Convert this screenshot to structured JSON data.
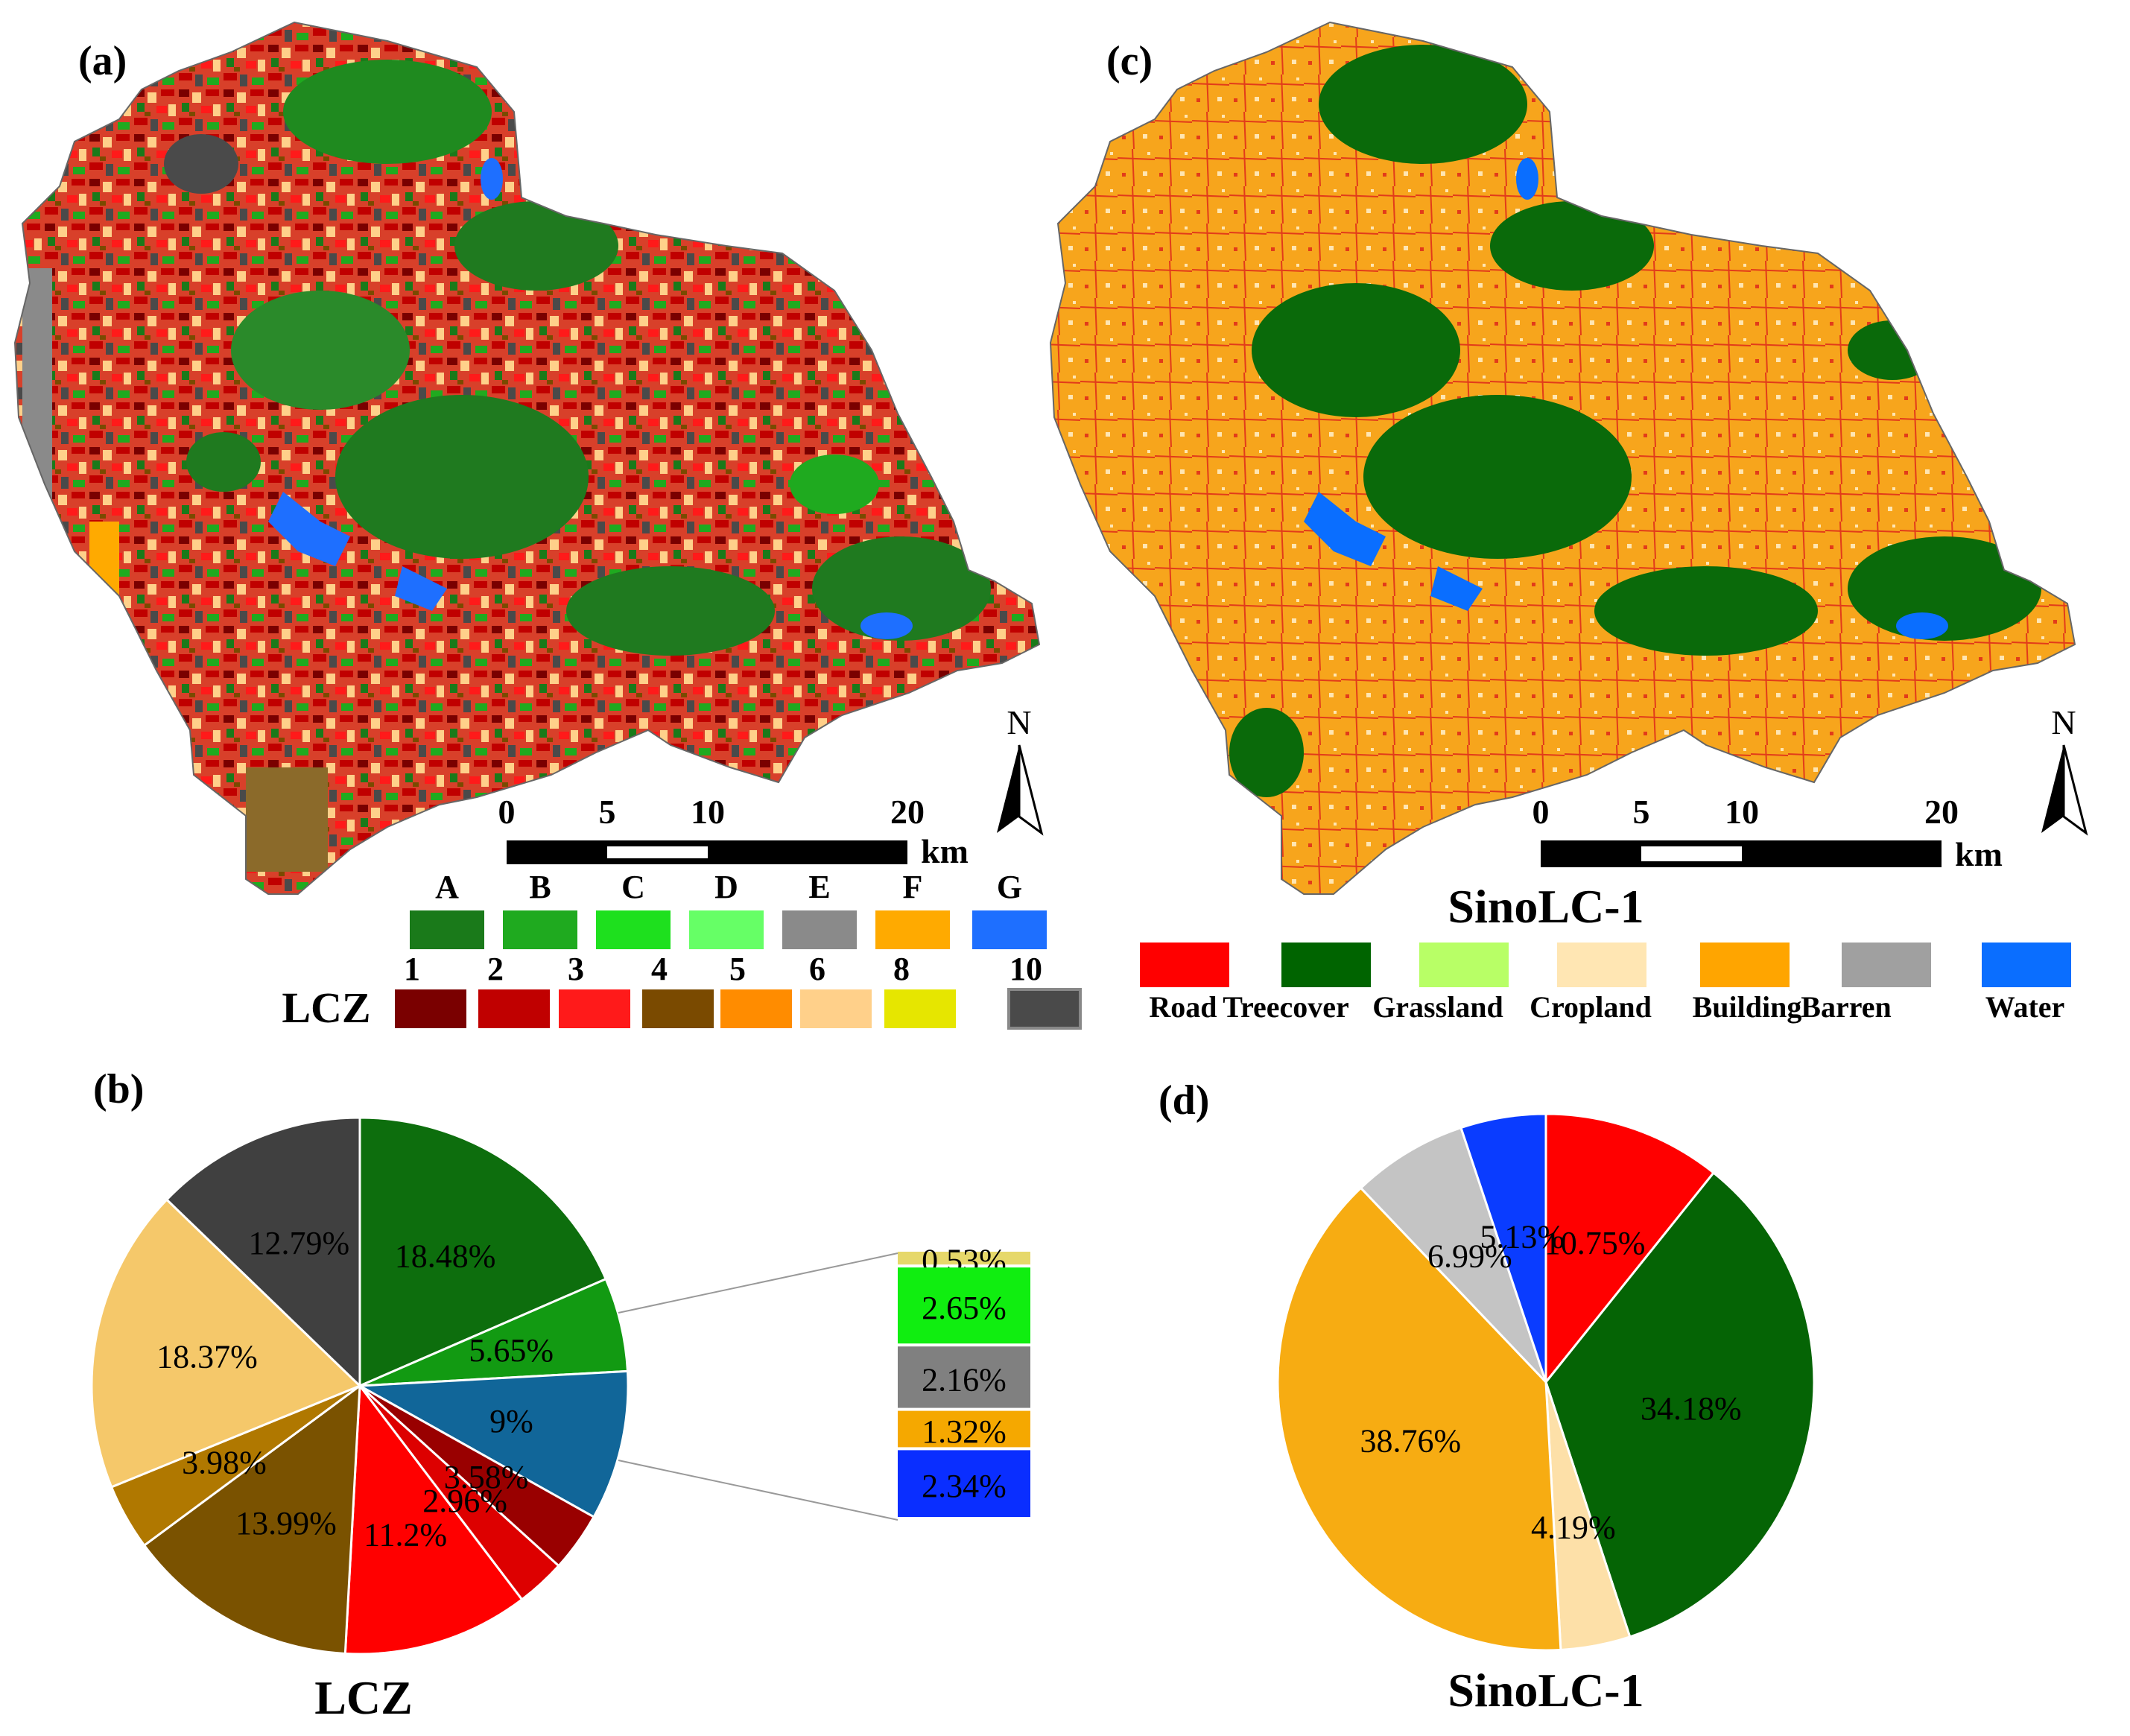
{
  "panels": {
    "a": "(a)",
    "b": "(b)",
    "c": "(c)",
    "d": "(d)"
  },
  "lcz_map": {
    "legend_title": "LCZ",
    "natural_classes": [
      {
        "label": "A",
        "color": "#1a7a1a"
      },
      {
        "label": "B",
        "color": "#1faa1f"
      },
      {
        "label": "C",
        "color": "#1ee01e"
      },
      {
        "label": "D",
        "color": "#66ff66"
      },
      {
        "label": "E",
        "color": "#8a8a8a"
      },
      {
        "label": "F",
        "color": "#ffaa00"
      },
      {
        "label": "G",
        "color": "#1e6fff"
      }
    ],
    "built_classes": [
      {
        "label": "1",
        "color": "#7a0000"
      },
      {
        "label": "2",
        "color": "#c00000"
      },
      {
        "label": "3",
        "color": "#ff1a1a"
      },
      {
        "label": "4",
        "color": "#7a4a00"
      },
      {
        "label": "5",
        "color": "#ff8c00"
      },
      {
        "label": "6",
        "color": "#ffd08a"
      },
      {
        "label": "8",
        "color": "#e6e600"
      },
      {
        "label": "10",
        "color": "#4a4a4a"
      }
    ],
    "scale": {
      "ticks": [
        "0",
        "5",
        "10",
        "20"
      ],
      "unit": "km"
    },
    "north": "N"
  },
  "sinolc_map": {
    "title": "SinoLC-1",
    "classes": [
      {
        "label": "Road",
        "color": "#ff0000"
      },
      {
        "label": "Treecover",
        "color": "#006400"
      },
      {
        "label": "Grassland",
        "color": "#b8ff66"
      },
      {
        "label": "Cropland",
        "color": "#ffe6b3"
      },
      {
        "label": "Building",
        "color": "#ffa500"
      },
      {
        "label": "Barren",
        "color": "#a0a0a0"
      },
      {
        "label": "Water",
        "color": "#0a6eff"
      }
    ],
    "scale": {
      "ticks": [
        "0",
        "5",
        "10",
        "20"
      ],
      "unit": "km"
    },
    "north": "N"
  },
  "chart_data": [
    {
      "type": "pie",
      "title": "LCZ",
      "slices": [
        {
          "label": "18.48%",
          "value": 18.48,
          "color": "#0d6e0d"
        },
        {
          "label": "5.65%",
          "value": 5.65,
          "color": "#129a12"
        },
        {
          "label": "9%",
          "value": 9.0,
          "color": "#116699"
        },
        {
          "label": "3.58%",
          "value": 3.58,
          "color": "#990000"
        },
        {
          "label": "2.96%",
          "value": 2.96,
          "color": "#dd0000"
        },
        {
          "label": "11.2%",
          "value": 11.2,
          "color": "#ff0000"
        },
        {
          "label": "13.99%",
          "value": 13.99,
          "color": "#7a5200"
        },
        {
          "label": "3.98%",
          "value": 3.98,
          "color": "#b07800"
        },
        {
          "label": "18.37%",
          "value": 18.37,
          "color": "#f5c86a"
        },
        {
          "label": "12.79%",
          "value": 12.79,
          "color": "#404040"
        }
      ],
      "breakdown": [
        {
          "label": "0.53%",
          "value": 0.53,
          "color": "#e6d86a"
        },
        {
          "label": "2.65%",
          "value": 2.65,
          "color": "#10ee10"
        },
        {
          "label": "2.16%",
          "value": 2.16,
          "color": "#808080"
        },
        {
          "label": "1.32%",
          "value": 1.32,
          "color": "#f5a800"
        },
        {
          "label": "2.34%",
          "value": 2.34,
          "color": "#0a2eff"
        }
      ]
    },
    {
      "type": "pie",
      "title": "SinoLC-1",
      "slices": [
        {
          "label": "10.75%",
          "value": 10.75,
          "color": "#ff0000"
        },
        {
          "label": "34.18%",
          "value": 34.18,
          "color": "#056405"
        },
        {
          "label": "4.19%",
          "value": 4.19,
          "color": "#fde0a8"
        },
        {
          "label": "38.76%",
          "value": 38.76,
          "color": "#f7ac12"
        },
        {
          "label": "6.99%",
          "value": 6.99,
          "color": "#c4c4c4"
        },
        {
          "label": "5.13%",
          "value": 5.13,
          "color": "#0a3cff"
        }
      ]
    }
  ]
}
